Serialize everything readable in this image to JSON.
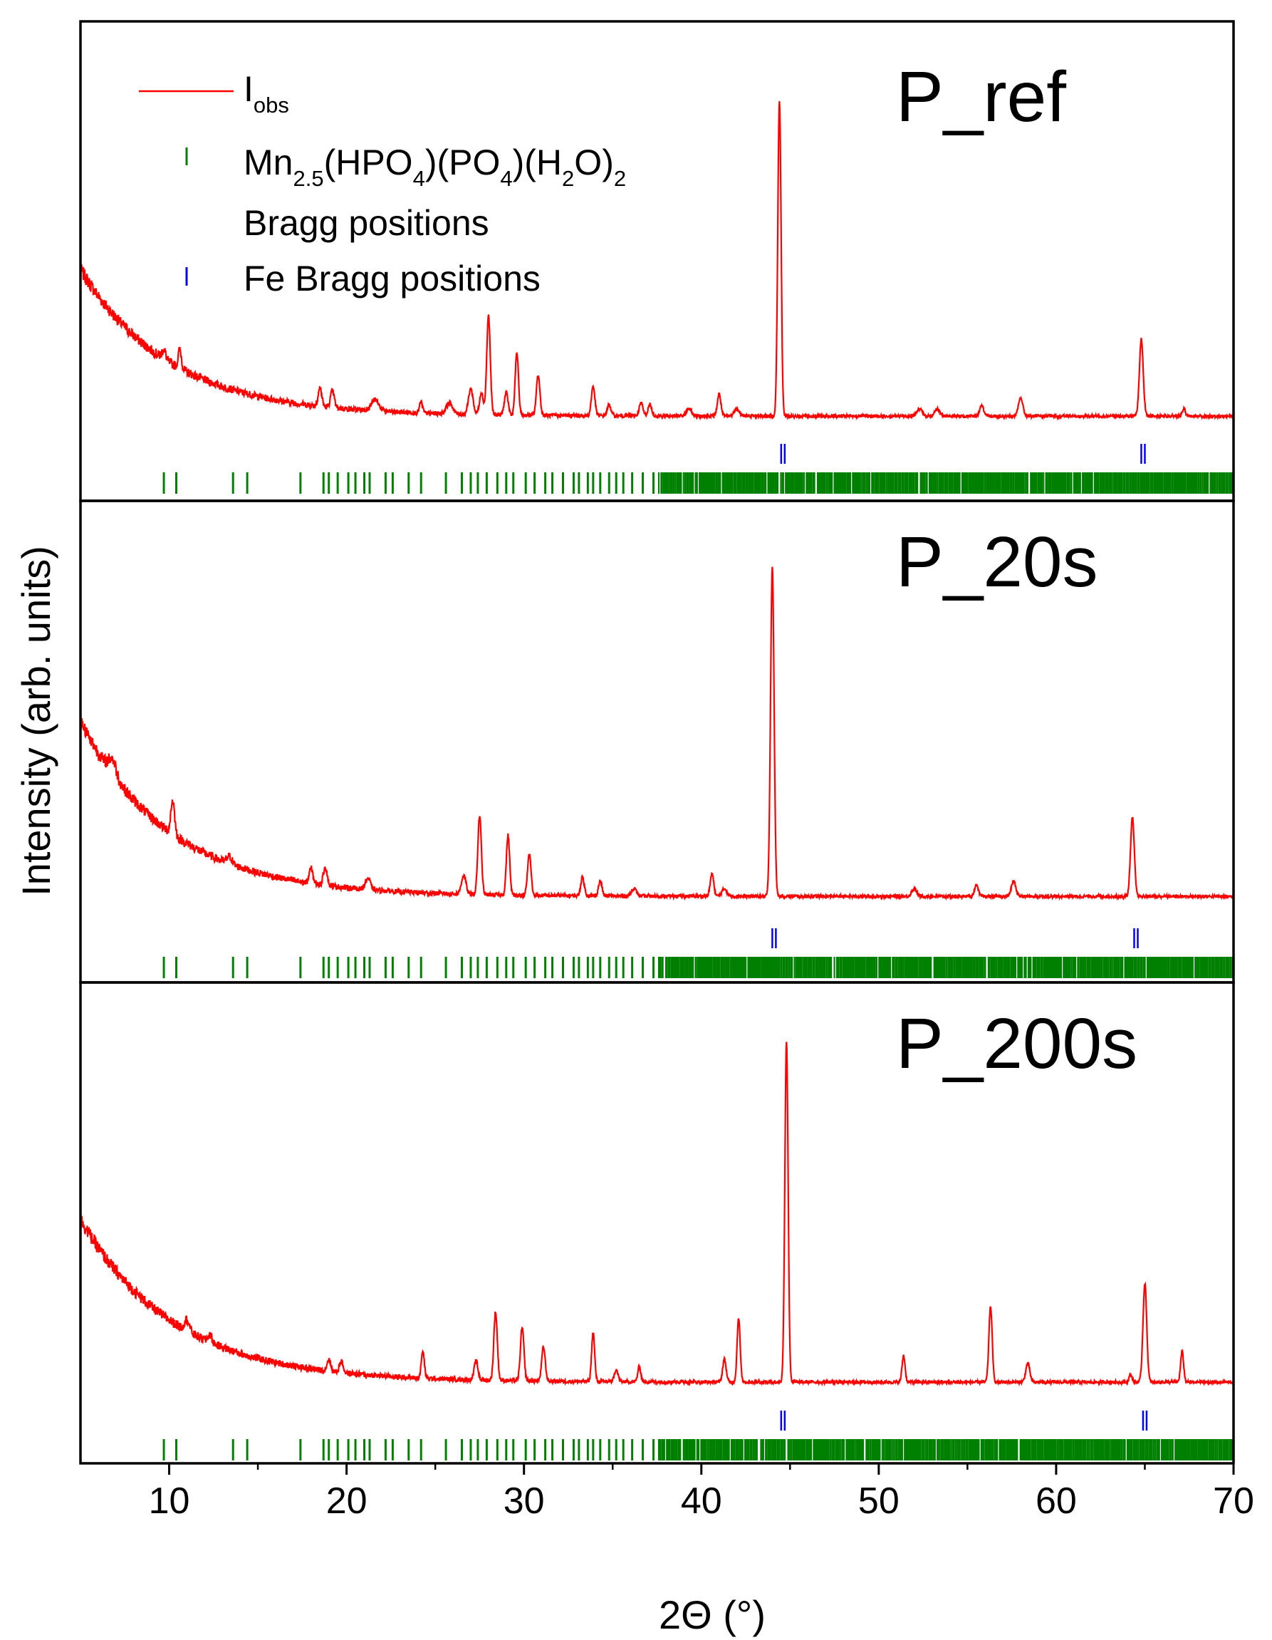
{
  "chart_data": {
    "type": "line",
    "xlabel": "2Θ (°)",
    "ylabel": "Intensity (arb. units)",
    "xlim": [
      5,
      70
    ],
    "x_ticks": [
      10,
      20,
      30,
      40,
      50,
      60,
      70
    ],
    "y_ticks": "none",
    "grid": false,
    "legend_position": "top-left (top panel)",
    "colors": {
      "observed": "#ff0000",
      "phase_ticks": "#008000",
      "fe_ticks": "#0000ff",
      "axes": "#000000"
    },
    "legend": {
      "obs": {
        "main": "I",
        "sub": "obs"
      },
      "phase": {
        "parts": [
          {
            "t": "Mn"
          },
          {
            "t": "2.5",
            "s": "sub"
          },
          {
            "t": "(HPO"
          },
          {
            "t": "4",
            "s": "sub"
          },
          {
            "t": ")(PO"
          },
          {
            "t": "4",
            "s": "sub"
          },
          {
            "t": ")(H"
          },
          {
            "t": "2",
            "s": "sub"
          },
          {
            "t": "O)"
          },
          {
            "t": "2",
            "s": "sub"
          }
        ],
        "line2": "Bragg positions"
      },
      "fe": "Fe Bragg positions"
    },
    "phase_bragg_positions": [
      9.7,
      10.4,
      13.6,
      14.4,
      17.4,
      18.7,
      19.0,
      19.5,
      20.1,
      20.5,
      21.0,
      21.3,
      22.2,
      22.6,
      23.5,
      24.2,
      25.6,
      26.5,
      27.0,
      27.4,
      27.9,
      28.5,
      29.0,
      29.4,
      30.1,
      30.6,
      31.2,
      31.6,
      32.2,
      32.8,
      33.1,
      33.6,
      33.9,
      34.3,
      34.8,
      35.2,
      35.6,
      36.1,
      36.7,
      37.3
    ],
    "phase_dense_ranges": [
      [
        37.6,
        70.0
      ]
    ],
    "panels": [
      {
        "label": "P_ref",
        "background": {
          "base": 0.06,
          "amp": 0.4,
          "decay": 5.0
        },
        "peaks": [
          [
            9.7,
            0.025,
            0.15
          ],
          [
            10.6,
            0.05,
            0.13
          ],
          [
            18.5,
            0.05,
            0.15
          ],
          [
            19.2,
            0.045,
            0.15
          ],
          [
            21.6,
            0.03,
            0.3
          ],
          [
            24.2,
            0.03,
            0.12
          ],
          [
            25.8,
            0.03,
            0.25
          ],
          [
            27.0,
            0.07,
            0.18
          ],
          [
            27.6,
            0.06,
            0.15
          ],
          [
            28.0,
            0.27,
            0.14
          ],
          [
            29.0,
            0.06,
            0.15
          ],
          [
            29.6,
            0.17,
            0.13
          ],
          [
            30.8,
            0.11,
            0.14
          ],
          [
            33.9,
            0.08,
            0.14
          ],
          [
            34.8,
            0.03,
            0.15
          ],
          [
            36.6,
            0.035,
            0.15
          ],
          [
            37.1,
            0.03,
            0.15
          ],
          [
            39.3,
            0.02,
            0.2
          ],
          [
            41.0,
            0.06,
            0.14
          ],
          [
            42.0,
            0.02,
            0.2
          ],
          [
            44.4,
            0.86,
            0.13
          ],
          [
            52.3,
            0.02,
            0.2
          ],
          [
            53.3,
            0.02,
            0.2
          ],
          [
            55.8,
            0.03,
            0.15
          ],
          [
            58.0,
            0.05,
            0.17
          ],
          [
            64.8,
            0.21,
            0.15
          ],
          [
            67.2,
            0.02,
            0.12
          ]
        ],
        "fe_bragg_positions": [
          44.6,
          64.9
        ]
      },
      {
        "label": "P_20s",
        "background": {
          "base": 0.07,
          "amp": 0.47,
          "decay": 5.0
        },
        "peaks": [
          [
            6.8,
            0.04,
            0.3
          ],
          [
            10.2,
            0.09,
            0.15
          ],
          [
            13.4,
            0.02,
            0.2
          ],
          [
            18.0,
            0.04,
            0.15
          ],
          [
            18.8,
            0.05,
            0.15
          ],
          [
            21.2,
            0.03,
            0.2
          ],
          [
            26.6,
            0.05,
            0.18
          ],
          [
            27.5,
            0.21,
            0.14
          ],
          [
            29.1,
            0.16,
            0.13
          ],
          [
            30.3,
            0.11,
            0.14
          ],
          [
            33.3,
            0.05,
            0.14
          ],
          [
            34.3,
            0.04,
            0.14
          ],
          [
            36.2,
            0.02,
            0.2
          ],
          [
            40.6,
            0.06,
            0.14
          ],
          [
            41.3,
            0.02,
            0.2
          ],
          [
            44.0,
            0.88,
            0.14
          ],
          [
            52.0,
            0.02,
            0.2
          ],
          [
            55.5,
            0.03,
            0.15
          ],
          [
            57.6,
            0.04,
            0.18
          ],
          [
            64.3,
            0.21,
            0.15
          ]
        ],
        "fe_bragg_positions": [
          44.1,
          64.5
        ]
      },
      {
        "label": "P_200s",
        "background": {
          "base": 0.06,
          "amp": 0.43,
          "decay": 5.2
        },
        "peaks": [
          [
            11.0,
            0.03,
            0.2
          ],
          [
            12.3,
            0.02,
            0.15
          ],
          [
            19.0,
            0.03,
            0.15
          ],
          [
            19.7,
            0.03,
            0.15
          ],
          [
            24.3,
            0.07,
            0.12
          ],
          [
            27.3,
            0.05,
            0.15
          ],
          [
            28.4,
            0.18,
            0.14
          ],
          [
            29.9,
            0.14,
            0.14
          ],
          [
            31.1,
            0.09,
            0.14
          ],
          [
            33.9,
            0.13,
            0.12
          ],
          [
            35.2,
            0.03,
            0.15
          ],
          [
            36.5,
            0.04,
            0.12
          ],
          [
            41.3,
            0.06,
            0.14
          ],
          [
            42.1,
            0.17,
            0.12
          ],
          [
            44.8,
            0.9,
            0.13
          ],
          [
            51.4,
            0.07,
            0.12
          ],
          [
            56.3,
            0.2,
            0.13
          ],
          [
            58.4,
            0.05,
            0.16
          ],
          [
            64.2,
            0.02,
            0.12
          ],
          [
            65.0,
            0.26,
            0.15
          ],
          [
            67.1,
            0.08,
            0.12
          ]
        ],
        "fe_bragg_positions": [
          44.6,
          65.0
        ]
      }
    ]
  }
}
